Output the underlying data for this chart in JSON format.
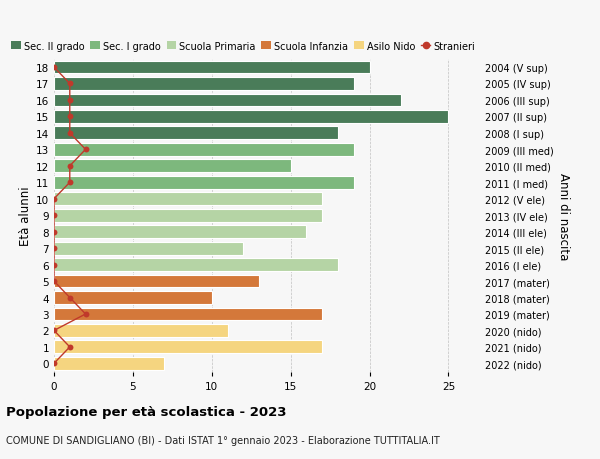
{
  "ages": [
    18,
    17,
    16,
    15,
    14,
    13,
    12,
    11,
    10,
    9,
    8,
    7,
    6,
    5,
    4,
    3,
    2,
    1,
    0
  ],
  "years": [
    "2004 (V sup)",
    "2005 (IV sup)",
    "2006 (III sup)",
    "2007 (II sup)",
    "2008 (I sup)",
    "2009 (III med)",
    "2010 (II med)",
    "2011 (I med)",
    "2012 (V ele)",
    "2013 (IV ele)",
    "2014 (III ele)",
    "2015 (II ele)",
    "2016 (I ele)",
    "2017 (mater)",
    "2018 (mater)",
    "2019 (mater)",
    "2020 (nido)",
    "2021 (nido)",
    "2022 (nido)"
  ],
  "bar_values": [
    20,
    19,
    22,
    25,
    18,
    19,
    15,
    19,
    17,
    17,
    16,
    12,
    18,
    13,
    10,
    17,
    11,
    17,
    7
  ],
  "stranieri_values": [
    0,
    1,
    1,
    1,
    1,
    2,
    1,
    1,
    0,
    0,
    0,
    0,
    0,
    0,
    1,
    2,
    0,
    1,
    0
  ],
  "bar_colors": [
    "#4a7c59",
    "#4a7c59",
    "#4a7c59",
    "#4a7c59",
    "#4a7c59",
    "#7db87d",
    "#7db87d",
    "#7db87d",
    "#b5d4a5",
    "#b5d4a5",
    "#b5d4a5",
    "#b5d4a5",
    "#b5d4a5",
    "#d4783a",
    "#d4783a",
    "#d4783a",
    "#f5d580",
    "#f5d580",
    "#f5d580"
  ],
  "legend_labels": [
    "Sec. II grado",
    "Sec. I grado",
    "Scuola Primaria",
    "Scuola Infanzia",
    "Asilo Nido",
    "Stranieri"
  ],
  "legend_colors": [
    "#4a7c59",
    "#7db87d",
    "#b5d4a5",
    "#d4783a",
    "#f5d580",
    "#c0392b"
  ],
  "stranieri_color": "#c0392b",
  "ylabel": "Età alunni",
  "ylabel_right": "Anni di nascita",
  "title": "Popolazione per età scolastica - 2023",
  "subtitle": "COMUNE DI SANDIGLIANO (BI) - Dati ISTAT 1° gennaio 2023 - Elaborazione TUTTITALIA.IT",
  "xlim": [
    0,
    27
  ],
  "background_color": "#f7f7f7"
}
